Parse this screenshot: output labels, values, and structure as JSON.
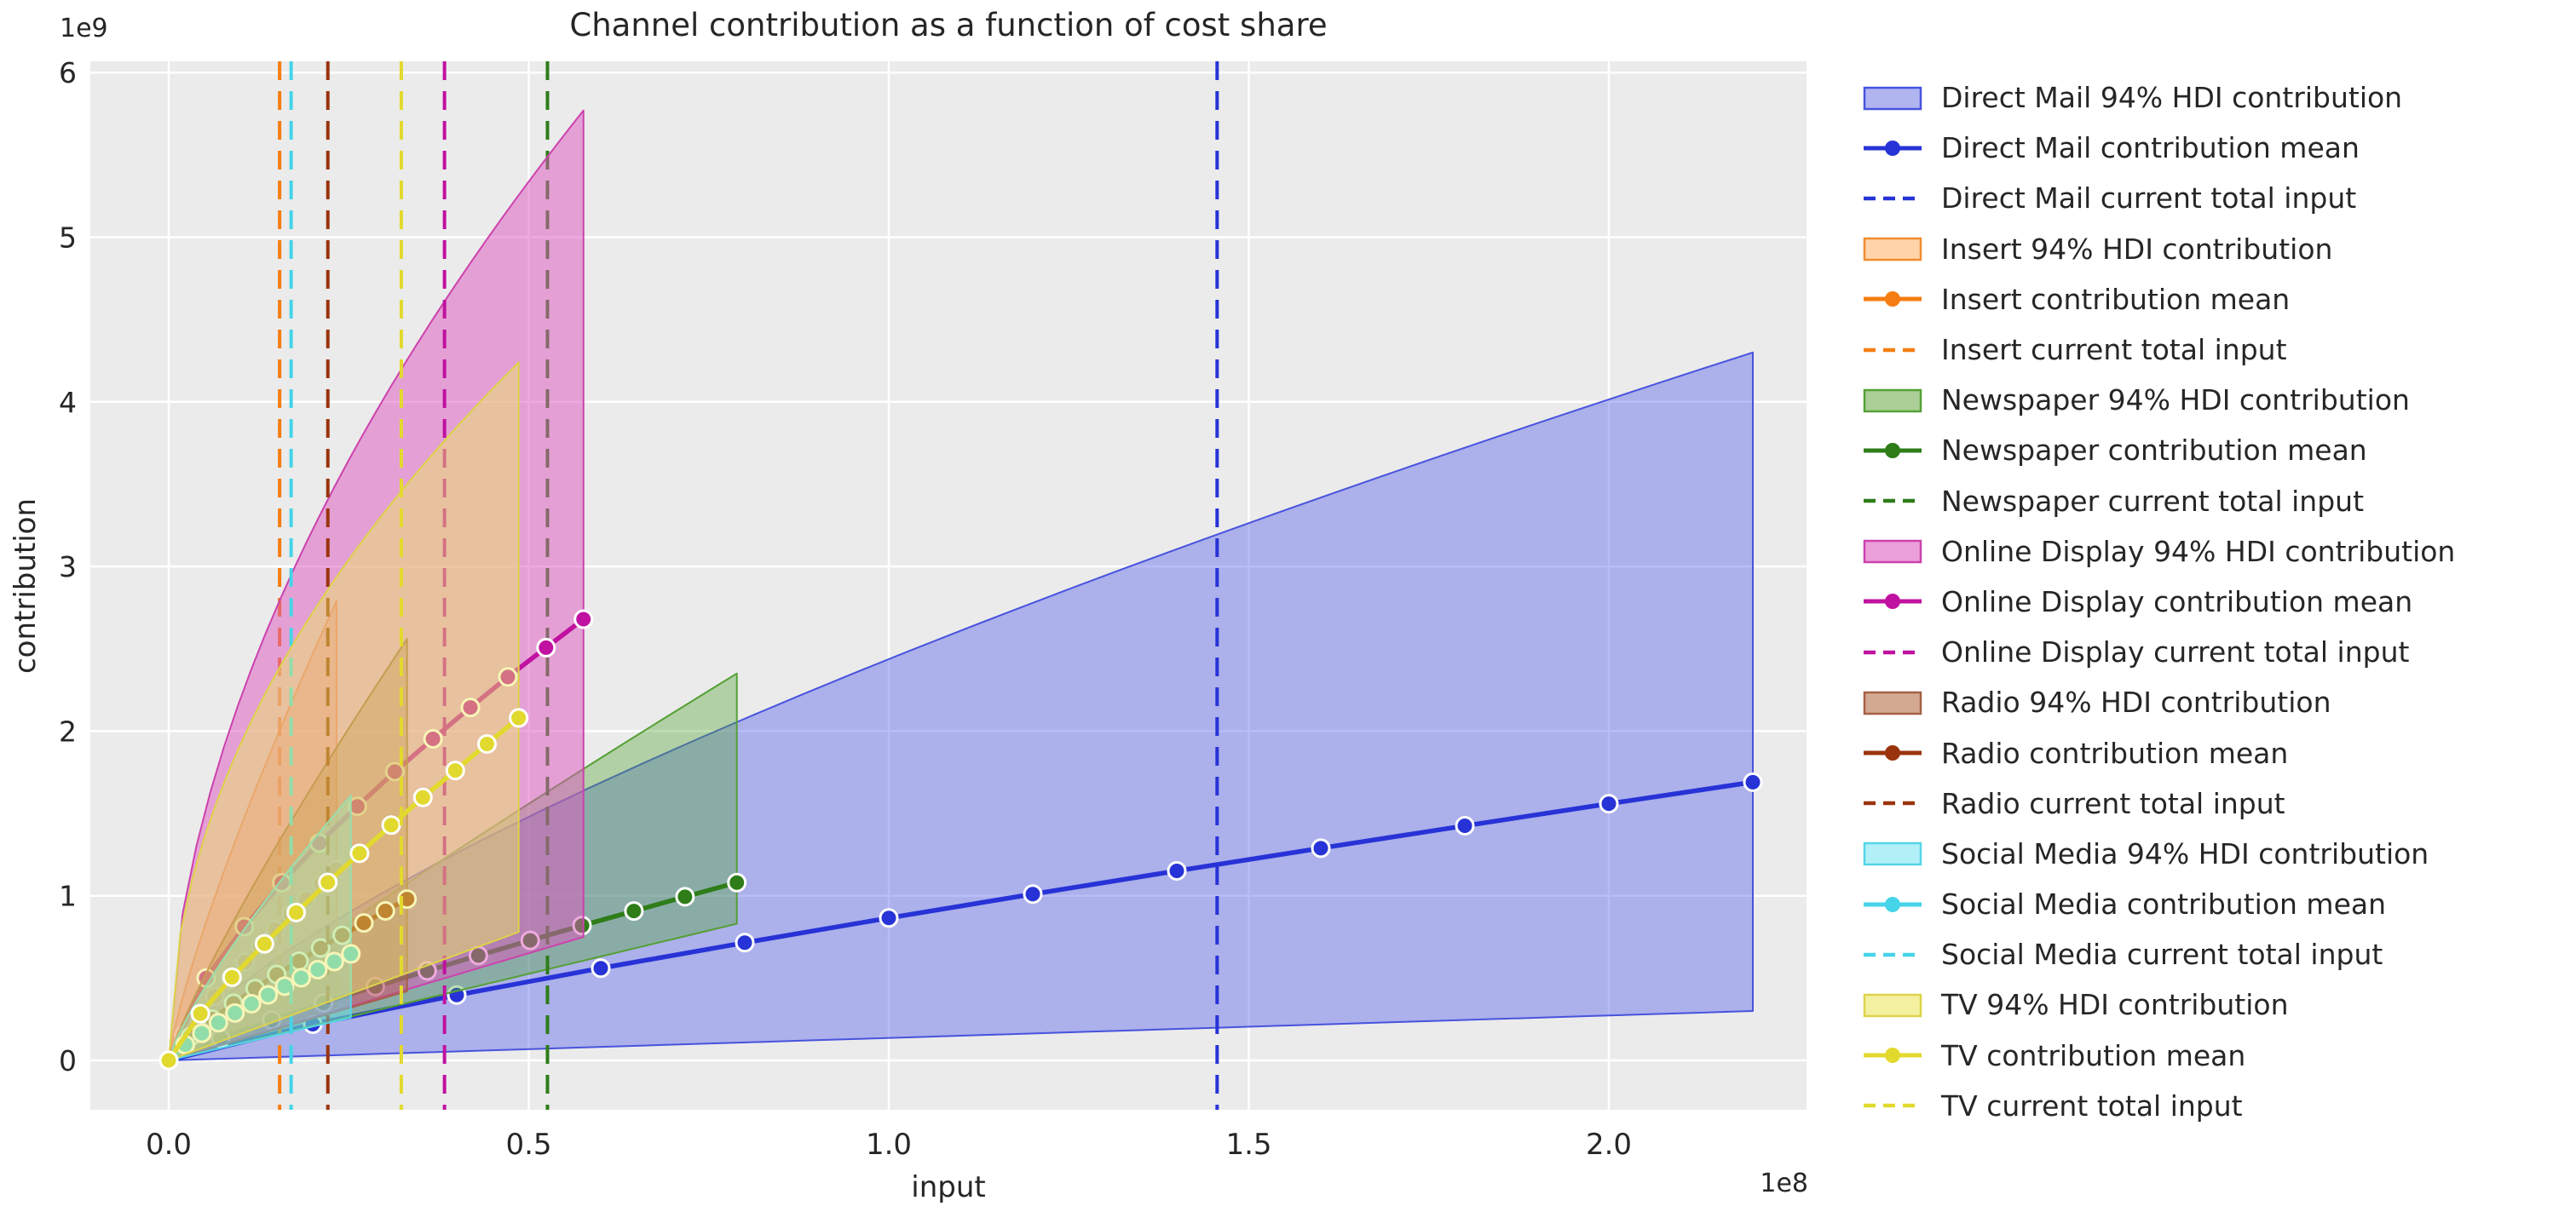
{
  "title": "Channel contribution as a function of cost share",
  "axes": {
    "xlabel": "input",
    "ylabel": "contribution",
    "x_offset_text": "1e8",
    "y_offset_text": "1e9",
    "x_tick_labels": [
      "0.0",
      "0.5",
      "1.0",
      "1.5",
      "2.0"
    ],
    "y_tick_labels": [
      "0",
      "1",
      "2",
      "3",
      "4",
      "5",
      "6"
    ]
  },
  "chart_data": {
    "type": "area",
    "title": "Channel contribution as a function of cost share",
    "xlabel": "input",
    "ylabel": "contribution",
    "x_unit_multiplier": "1e8",
    "y_unit_multiplier": "1e9",
    "x_ticks": [
      0,
      0.5,
      1.0,
      1.5,
      2.0
    ],
    "y_ticks": [
      0,
      1,
      2,
      3,
      4,
      5,
      6
    ],
    "xlim": [
      -0.11,
      2.27
    ],
    "ylim": [
      -0.3,
      6.07
    ],
    "grid": true,
    "legend_position": "right-outside",
    "background": "#ebebeb",
    "grid_color": "#ffffff",
    "channels": [
      {
        "name": "Direct Mail",
        "x_end_1e8": 2.2,
        "current_total_input_1e8": 1.456,
        "hdi_top_1e9": 4.3,
        "hdi_low_end_1e9": 0.3,
        "p_top": 0.72,
        "mean_points_1e8_1e9": [
          [
            0,
            0
          ],
          [
            0.2,
            0.22
          ],
          [
            0.4,
            0.397
          ],
          [
            0.6,
            0.56
          ],
          [
            0.8,
            0.715
          ],
          [
            1.0,
            0.865
          ],
          [
            1.2,
            1.01
          ],
          [
            1.4,
            1.151
          ],
          [
            1.6,
            1.289
          ],
          [
            1.8,
            1.425
          ],
          [
            2.0,
            1.559
          ],
          [
            2.2,
            1.69
          ]
        ],
        "colors": {
          "line": "#2733d6",
          "fill": "rgba(85,95,235,0.42)",
          "edge": "#4853dd",
          "legend_fill": "#b0b5f0"
        }
      },
      {
        "name": "Insert",
        "x_end_1e8": 0.233,
        "current_total_input_1e8": 0.154,
        "hdi_top_1e9": 2.79,
        "hdi_low_end_1e9": 0.33,
        "p_top": 0.8,
        "mean_points_1e8_1e9": [
          [
            0,
            0
          ],
          [
            0.021,
            0.155
          ],
          [
            0.042,
            0.277
          ],
          [
            0.064,
            0.39
          ],
          [
            0.085,
            0.496
          ],
          [
            0.106,
            0.598
          ],
          [
            0.127,
            0.697
          ],
          [
            0.148,
            0.794
          ],
          [
            0.17,
            0.888
          ],
          [
            0.191,
            0.98
          ],
          [
            0.212,
            1.071
          ],
          [
            0.233,
            1.16
          ]
        ],
        "colors": {
          "line": "#f57d11",
          "fill": "rgba(250,135,40,0.36)",
          "edge": "#f08c2e",
          "legend_fill": "#ffd4ab"
        }
      },
      {
        "name": "Newspaper",
        "x_end_1e8": 0.789,
        "current_total_input_1e8": 0.526,
        "hdi_top_1e9": 2.35,
        "hdi_low_end_1e9": 0.83,
        "p_top": 0.9,
        "mean_points_1e8_1e9": [
          [
            0,
            0
          ],
          [
            0.072,
            0.134
          ],
          [
            0.143,
            0.245
          ],
          [
            0.215,
            0.349
          ],
          [
            0.287,
            0.448
          ],
          [
            0.359,
            0.544
          ],
          [
            0.43,
            0.637
          ],
          [
            0.502,
            0.729
          ],
          [
            0.574,
            0.819
          ],
          [
            0.646,
            0.907
          ],
          [
            0.717,
            0.994
          ],
          [
            0.789,
            1.08
          ]
        ],
        "colors": {
          "line": "#2e7d19",
          "fill": "rgba(85,165,55,0.38)",
          "edge": "#55a035",
          "legend_fill": "#abcf97"
        }
      },
      {
        "name": "Online Display",
        "x_end_1e8": 0.576,
        "current_total_input_1e8": 0.383,
        "hdi_top_1e9": 5.77,
        "hdi_low_end_1e9": 0.75,
        "p_top": 0.55,
        "mean_points_1e8_1e9": [
          [
            0,
            0
          ],
          [
            0.052,
            0.5
          ],
          [
            0.105,
            0.812
          ],
          [
            0.157,
            1.079
          ],
          [
            0.209,
            1.32
          ],
          [
            0.262,
            1.543
          ],
          [
            0.314,
            1.754
          ],
          [
            0.367,
            1.953
          ],
          [
            0.419,
            2.144
          ],
          [
            0.471,
            2.329
          ],
          [
            0.524,
            2.507
          ],
          [
            0.576,
            2.68
          ]
        ],
        "colors": {
          "line": "#c011a0",
          "fill": "rgba(222,85,190,0.5)",
          "edge": "#cc42ad",
          "legend_fill": "#eb9fd8"
        }
      },
      {
        "name": "Radio",
        "x_end_1e8": 0.331,
        "current_total_input_1e8": 0.221,
        "hdi_top_1e9": 2.56,
        "hdi_low_end_1e9": 0.42,
        "p_top": 0.85,
        "mean_points_1e8_1e9": [
          [
            0,
            0
          ],
          [
            0.03,
            0.144
          ],
          [
            0.06,
            0.251
          ],
          [
            0.09,
            0.347
          ],
          [
            0.12,
            0.436
          ],
          [
            0.15,
            0.522
          ],
          [
            0.181,
            0.603
          ],
          [
            0.211,
            0.683
          ],
          [
            0.241,
            0.76
          ],
          [
            0.271,
            0.835
          ],
          [
            0.301,
            0.908
          ],
          [
            0.331,
            0.98
          ]
        ],
        "colors": {
          "line": "#9a340c",
          "fill": "rgba(175,105,75,0.42)",
          "edge": "#a46046",
          "legend_fill": "#d4a992"
        }
      },
      {
        "name": "Social Media",
        "x_end_1e8": 0.253,
        "current_total_input_1e8": 0.17,
        "hdi_top_1e9": 1.61,
        "hdi_low_end_1e9": 0.26,
        "p_top": 0.8,
        "mean_points_1e8_1e9": [
          [
            0,
            0
          ],
          [
            0.023,
            0.095
          ],
          [
            0.046,
            0.165
          ],
          [
            0.069,
            0.229
          ],
          [
            0.092,
            0.288
          ],
          [
            0.115,
            0.344
          ],
          [
            0.138,
            0.398
          ],
          [
            0.161,
            0.451
          ],
          [
            0.184,
            0.502
          ],
          [
            0.207,
            0.551
          ],
          [
            0.23,
            0.6
          ],
          [
            0.253,
            0.647
          ]
        ],
        "colors": {
          "line": "#45d4e8",
          "fill": "rgba(105,225,242,0.48)",
          "edge": "#55d5e8",
          "legend_fill": "#b2f0f7"
        }
      },
      {
        "name": "TV",
        "x_end_1e8": 0.486,
        "current_total_input_1e8": 0.323,
        "hdi_top_1e9": 4.24,
        "hdi_low_end_1e9": 0.78,
        "p_top": 0.5,
        "mean_points_1e8_1e9": [
          [
            0,
            0
          ],
          [
            0.044,
            0.284
          ],
          [
            0.088,
            0.505
          ],
          [
            0.133,
            0.708
          ],
          [
            0.177,
            0.898
          ],
          [
            0.221,
            1.081
          ],
          [
            0.265,
            1.258
          ],
          [
            0.309,
            1.429
          ],
          [
            0.353,
            1.597
          ],
          [
            0.398,
            1.761
          ],
          [
            0.442,
            1.922
          ],
          [
            0.486,
            2.08
          ]
        ],
        "colors": {
          "line": "#e2d92e",
          "fill": "rgba(238,232,95,0.45)",
          "edge": "#ddd34a",
          "legend_fill": "#f3f0a0"
        }
      }
    ]
  },
  "legend": {
    "entries": [
      {
        "label": "Direct Mail 94% HDI contribution",
        "kind": "patch",
        "channel": 0
      },
      {
        "label": "Direct Mail contribution mean",
        "kind": "line",
        "channel": 0
      },
      {
        "label": "Direct Mail current total input",
        "kind": "dash",
        "channel": 0
      },
      {
        "label": "Insert 94% HDI contribution",
        "kind": "patch",
        "channel": 1
      },
      {
        "label": "Insert contribution mean",
        "kind": "line",
        "channel": 1
      },
      {
        "label": "Insert current total input",
        "kind": "dash",
        "channel": 1
      },
      {
        "label": "Newspaper 94% HDI contribution",
        "kind": "patch",
        "channel": 2
      },
      {
        "label": "Newspaper contribution mean",
        "kind": "line",
        "channel": 2
      },
      {
        "label": "Newspaper current total input",
        "kind": "dash",
        "channel": 2
      },
      {
        "label": "Online Display 94% HDI contribution",
        "kind": "patch",
        "channel": 3
      },
      {
        "label": "Online Display contribution mean",
        "kind": "line",
        "channel": 3
      },
      {
        "label": "Online Display current total input",
        "kind": "dash",
        "channel": 3
      },
      {
        "label": "Radio 94% HDI contribution",
        "kind": "patch",
        "channel": 4
      },
      {
        "label": "Radio contribution mean",
        "kind": "line",
        "channel": 4
      },
      {
        "label": "Radio current total input",
        "kind": "dash",
        "channel": 4
      },
      {
        "label": "Social Media 94% HDI contribution",
        "kind": "patch",
        "channel": 5
      },
      {
        "label": "Social Media contribution mean",
        "kind": "line",
        "channel": 5
      },
      {
        "label": "Social Media current total input",
        "kind": "dash",
        "channel": 5
      },
      {
        "label": "TV 94% HDI contribution",
        "kind": "patch",
        "channel": 6
      },
      {
        "label": "TV contribution mean",
        "kind": "line",
        "channel": 6
      },
      {
        "label": "TV current total input",
        "kind": "dash",
        "channel": 6
      }
    ]
  }
}
